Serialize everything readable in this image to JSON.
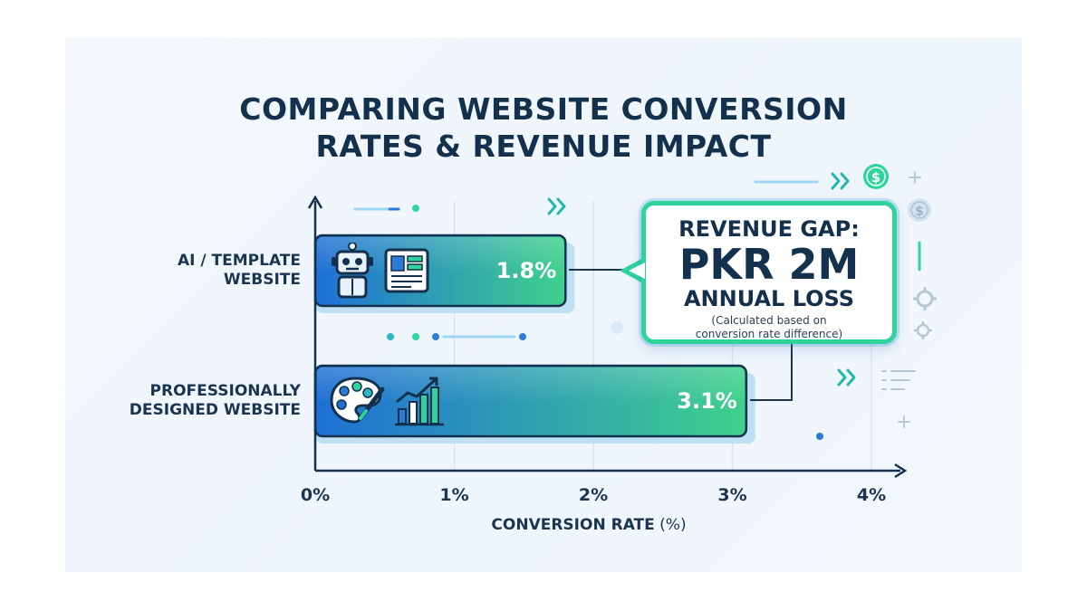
{
  "title_lines": [
    "COMPARING WEBSITE CONVERSION",
    "RATES & REVENUE IMPACT"
  ],
  "chart_data": {
    "type": "bar",
    "orientation": "horizontal",
    "title": "COMPARING WEBSITE CONVERSION RATES & REVENUE IMPACT",
    "categories": [
      {
        "label_lines": [
          "AI / TEMPLATE",
          "WEBSITE"
        ],
        "value": 1.8,
        "value_label": "1.8%"
      },
      {
        "label_lines": [
          "PROFESSIONALLY",
          "DESIGNED WEBSITE"
        ],
        "value": 3.1,
        "value_label": "3.1%"
      }
    ],
    "xlim": [
      0,
      4
    ],
    "x_ticks": [
      0,
      1,
      2,
      3,
      4
    ],
    "x_tick_labels": [
      "0%",
      "1%",
      "2%",
      "3%",
      "4%"
    ],
    "xlabel_main": "CONVERSION RATE",
    "xlabel_unit": "(%)",
    "grid": true,
    "bar_gradient": [
      "#1f6fd6",
      "#3fd18c"
    ]
  },
  "callout": {
    "heading": "REVENUE GAP:",
    "amount": "PKR 2M",
    "subheading": "ANNUAL LOSS",
    "note_line1": "(Calculated based on",
    "note_line2": "conversion rate difference)",
    "border_color": "#2fd39c"
  },
  "icons": {
    "bar1": [
      "robot-icon",
      "webpage-template-icon"
    ],
    "bar2": [
      "paint-palette-icon",
      "growth-chart-icon"
    ],
    "decor": [
      "dollar-coin-icon",
      "dollar-coin-icon",
      "gear-icon",
      "gear-icon",
      "double-chevron-icon",
      "plus-icon",
      "list-lines-icon"
    ]
  },
  "colors": {
    "navy": "#13304d",
    "green": "#2fd39c",
    "blue": "#1f6fd6"
  }
}
